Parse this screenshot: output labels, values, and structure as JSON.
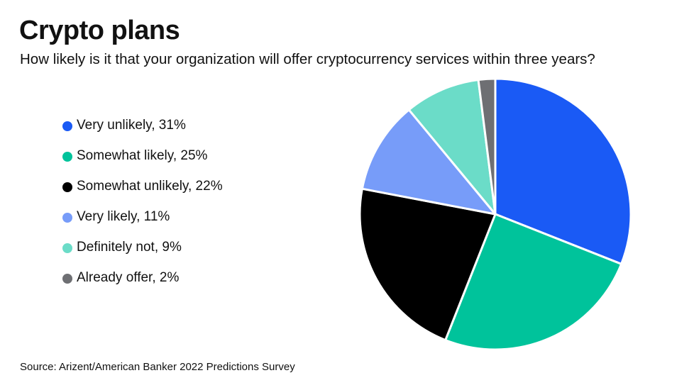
{
  "chart_data": {
    "type": "pie",
    "title": "Crypto plans",
    "subtitle": "How likely is it that your organization will offer cryptocurrency services within three years?",
    "source": "Source: Arizent/American Banker 2022 Predictions Survey",
    "legend_position": "left",
    "unit": "%",
    "slices": [
      {
        "label": "Very unlikely",
        "value": 31,
        "color": "#1a5af5"
      },
      {
        "label": "Somewhat likely",
        "value": 25,
        "color": "#00c39b"
      },
      {
        "label": "Somewhat unlikely",
        "value": 22,
        "color": "#000000"
      },
      {
        "label": "Very likely",
        "value": 11,
        "color": "#779cf9"
      },
      {
        "label": "Definitely not",
        "value": 9,
        "color": "#6bdcc8"
      },
      {
        "label": "Already offer",
        "value": 2,
        "color": "#6e6f73"
      }
    ]
  }
}
